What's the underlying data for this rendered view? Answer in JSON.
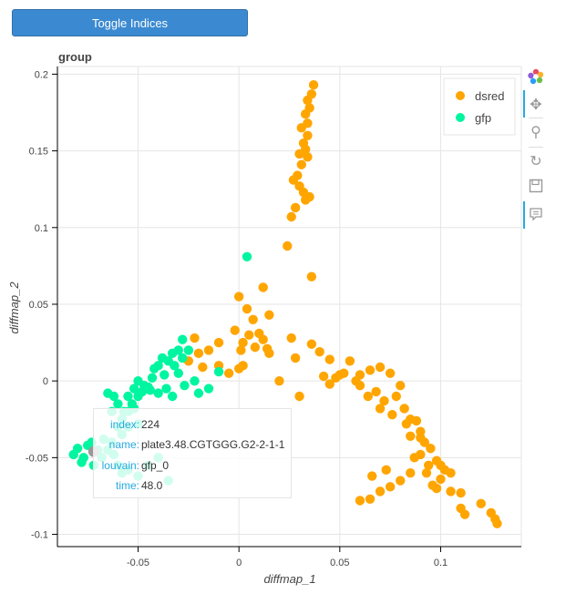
{
  "button": {
    "label": "Toggle Indices"
  },
  "chart_data": {
    "type": "scatter",
    "title": "group",
    "xlabel": "diffmap_1",
    "ylabel": "diffmap_2",
    "xlim": [
      -0.09,
      0.14
    ],
    "ylim": [
      -0.108,
      0.205
    ],
    "xticks": [
      -0.05,
      0,
      0.05,
      0.1
    ],
    "xtick_labels": [
      "-0.05",
      "0",
      "0.05",
      "0.1"
    ],
    "yticks": [
      -0.1,
      -0.05,
      0,
      0.05,
      0.1,
      0.15,
      0.2
    ],
    "ytick_labels": [
      "-0.1",
      "-0.05",
      "0",
      "0.05",
      "0.1",
      "0.15",
      "0.2"
    ],
    "grid": true,
    "legend_position": "top-right",
    "series": [
      {
        "name": "dsred",
        "color": "#ffa500",
        "x": [
          0.037,
          0.036,
          0.034,
          0.035,
          0.033,
          0.034,
          0.031,
          0.034,
          0.032,
          0.033,
          0.03,
          0.034,
          0.031,
          0.029,
          0.027,
          0.03,
          0.032,
          0.035,
          0.033,
          0.028,
          0.026,
          0.024,
          0.036,
          0.012,
          0.0,
          0.004,
          0.007,
          0.015,
          0.005,
          0.002,
          0.01,
          0.012,
          0.008,
          -0.002,
          0.001,
          -0.01,
          -0.015,
          -0.022,
          -0.02,
          -0.025,
          -0.018,
          -0.01,
          -0.005,
          0.0,
          0.002,
          0.014,
          0.015,
          0.02,
          0.026,
          0.028,
          0.03,
          0.036,
          0.04,
          0.045,
          0.05,
          0.045,
          0.042,
          0.048,
          0.052,
          0.055,
          0.058,
          0.06,
          0.065,
          0.07,
          0.06,
          0.064,
          0.075,
          0.07,
          0.068,
          0.072,
          0.076,
          0.08,
          0.078,
          0.082,
          0.085,
          0.088,
          0.09,
          0.092,
          0.085,
          0.087,
          0.09,
          0.095,
          0.094,
          0.093,
          0.098,
          0.1,
          0.102,
          0.105,
          0.1,
          0.098,
          0.096,
          0.11,
          0.112,
          0.12,
          0.125,
          0.127,
          0.128,
          0.11,
          0.105,
          0.06,
          0.065,
          0.07,
          0.075,
          0.08,
          0.085,
          0.09,
          0.073,
          0.066,
          0.083
        ],
        "y": [
          0.193,
          0.187,
          0.183,
          0.178,
          0.174,
          0.168,
          0.165,
          0.16,
          0.155,
          0.151,
          0.148,
          0.146,
          0.141,
          0.134,
          0.131,
          0.127,
          0.123,
          0.12,
          0.118,
          0.113,
          0.107,
          0.088,
          0.068,
          0.061,
          0.055,
          0.047,
          0.04,
          0.043,
          0.03,
          0.025,
          0.031,
          0.027,
          0.022,
          0.033,
          0.02,
          0.025,
          0.02,
          0.028,
          0.018,
          0.013,
          0.009,
          0.01,
          0.005,
          0.008,
          0.01,
          0.021,
          0.018,
          0.0,
          0.028,
          0.015,
          -0.01,
          0.024,
          0.019,
          0.014,
          0.004,
          -0.002,
          0.003,
          0.002,
          0.005,
          0.013,
          0.0,
          -0.003,
          0.007,
          0.009,
          0.004,
          -0.01,
          0.005,
          -0.018,
          -0.007,
          -0.013,
          -0.022,
          -0.003,
          -0.01,
          -0.018,
          -0.025,
          -0.026,
          -0.033,
          -0.04,
          -0.036,
          -0.05,
          -0.037,
          -0.044,
          -0.055,
          -0.06,
          -0.052,
          -0.055,
          -0.058,
          -0.06,
          -0.064,
          -0.07,
          -0.068,
          -0.073,
          -0.087,
          -0.08,
          -0.086,
          -0.09,
          -0.093,
          -0.083,
          -0.072,
          -0.078,
          -0.077,
          -0.072,
          -0.069,
          -0.065,
          -0.06,
          -0.048,
          -0.058,
          -0.062,
          -0.028
        ]
      },
      {
        "name": "gfp",
        "color": "#00f5a0",
        "x": [
          0.004,
          -0.028,
          -0.03,
          -0.033,
          -0.038,
          -0.04,
          -0.042,
          -0.035,
          -0.032,
          -0.028,
          -0.025,
          -0.03,
          -0.037,
          -0.043,
          -0.045,
          -0.048,
          -0.05,
          -0.052,
          -0.05,
          -0.047,
          -0.044,
          -0.04,
          -0.036,
          -0.033,
          -0.027,
          -0.022,
          -0.02,
          -0.015,
          -0.01,
          -0.055,
          -0.053,
          -0.057,
          -0.06,
          -0.062,
          -0.065,
          -0.063,
          -0.058,
          -0.055,
          -0.052,
          -0.05,
          -0.055,
          -0.058,
          -0.06,
          -0.063,
          -0.067,
          -0.07,
          -0.073,
          -0.075,
          -0.077,
          -0.08,
          -0.082,
          -0.078,
          -0.072,
          -0.068,
          -0.065,
          -0.062,
          -0.06,
          -0.058,
          -0.055,
          -0.05,
          -0.045,
          -0.04,
          -0.035
        ],
        "y": [
          0.081,
          0.027,
          0.02,
          0.018,
          0.015,
          0.01,
          0.008,
          0.013,
          0.01,
          0.015,
          0.02,
          0.005,
          0.004,
          0.002,
          -0.004,
          -0.007,
          -0.01,
          -0.005,
          0.0,
          -0.003,
          -0.006,
          -0.008,
          -0.005,
          -0.01,
          -0.003,
          0.0,
          -0.008,
          -0.005,
          0.006,
          -0.01,
          -0.015,
          -0.02,
          -0.015,
          -0.01,
          -0.008,
          -0.02,
          -0.025,
          -0.02,
          -0.018,
          -0.028,
          -0.03,
          -0.035,
          -0.03,
          -0.04,
          -0.038,
          -0.045,
          -0.04,
          -0.042,
          -0.05,
          -0.044,
          -0.048,
          -0.053,
          -0.055,
          -0.05,
          -0.045,
          -0.048,
          -0.055,
          -0.06,
          -0.058,
          -0.062,
          -0.055,
          -0.05,
          -0.065
        ]
      }
    ],
    "highlighted_point": {
      "x": -0.072,
      "y": -0.046,
      "color": "#999999"
    }
  },
  "tooltip": {
    "rows": [
      {
        "key": "index:",
        "value": "224"
      },
      {
        "key": "name:",
        "value": "plate3.48.CGTGGG.G2-2-1-1"
      },
      {
        "key": "louvain:",
        "value": "gfp_0"
      },
      {
        "key": "time:",
        "value": "48.0"
      }
    ]
  },
  "toolbar": {
    "icons": [
      "bokeh-logo-icon",
      "pan-icon",
      "box-zoom-icon",
      "reset-icon",
      "save-icon",
      "hover-icon"
    ]
  }
}
